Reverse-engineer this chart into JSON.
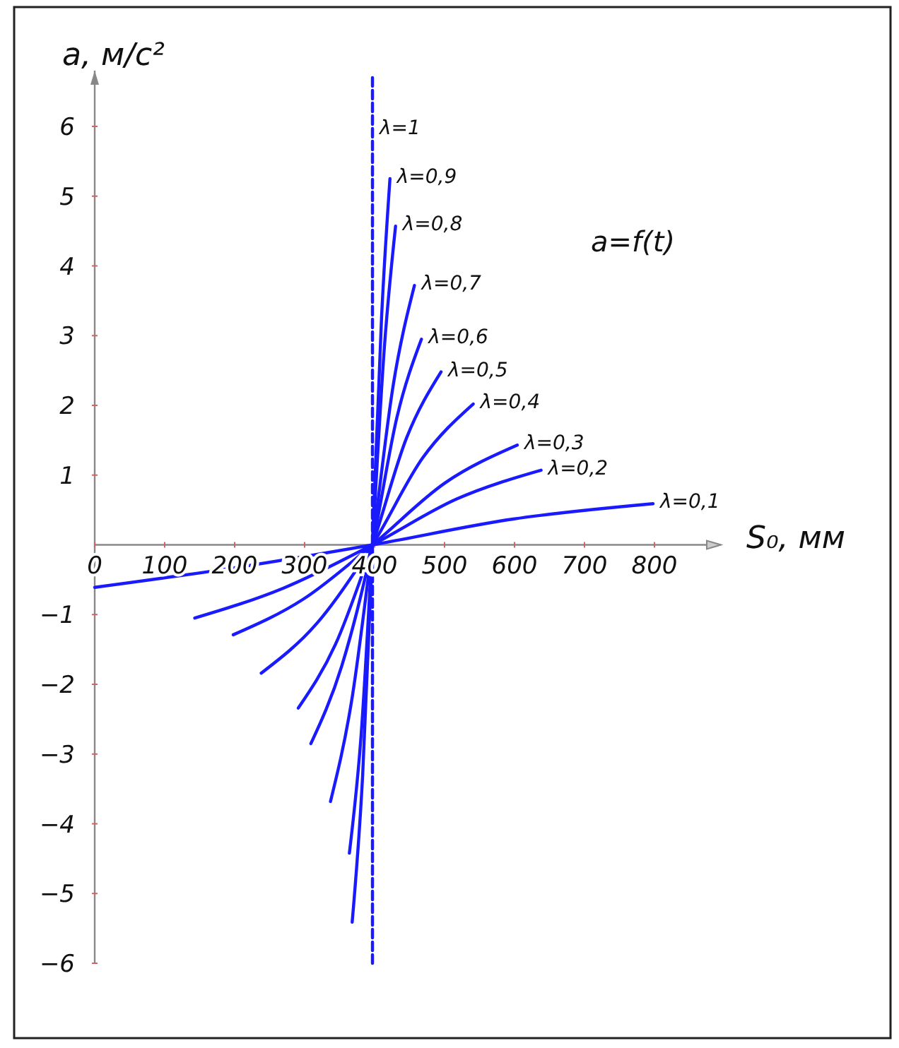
{
  "chart_data": {
    "type": "line",
    "xlabel": "S₀, мм",
    "ylabel": "a, м/с²",
    "annotations": [
      "a=f(t)"
    ],
    "xlim": [
      0,
      895
    ],
    "ylim": [
      -6,
      6.8
    ],
    "xticks": [
      0,
      100,
      200,
      300,
      400,
      500,
      600,
      700,
      800
    ],
    "yticks": [
      -6,
      -5,
      -4,
      -3,
      -2,
      -1,
      1,
      2,
      3,
      4,
      5,
      6
    ],
    "grid": false,
    "marker": "none",
    "line_style": "solid",
    "series": [
      {
        "name": "λ=1",
        "color": "#1a1aff",
        "line_style": "dashed",
        "x": [
          397,
          397
        ],
        "values": [
          -6,
          6.7
        ]
      },
      {
        "name": "λ=0,9",
        "color": "#1a1aff",
        "x": [
          368,
          383,
          397,
          410,
          422
        ],
        "values": [
          -5.41,
          -3.3,
          0,
          3.26,
          5.25
        ]
      },
      {
        "name": "λ=0,8",
        "color": "#1a1aff",
        "x": [
          364,
          381,
          397,
          414,
          430
        ],
        "values": [
          -4.42,
          -2.7,
          0,
          2.83,
          4.57
        ]
      },
      {
        "name": "λ=0,7",
        "color": "#1a1aff",
        "x": [
          337,
          367,
          397,
          427,
          457
        ],
        "values": [
          -3.68,
          -2.25,
          0,
          2.31,
          3.72
        ]
      },
      {
        "name": "λ=0,6",
        "color": "#1a1aff",
        "x": [
          309,
          353,
          397,
          432,
          467
        ],
        "values": [
          -2.85,
          -1.74,
          0,
          1.83,
          2.95
        ]
      },
      {
        "name": "λ=0,5",
        "color": "#1a1aff",
        "x": [
          291,
          344,
          397,
          446,
          495
        ],
        "values": [
          -2.34,
          -1.43,
          0,
          1.54,
          2.48
        ]
      },
      {
        "name": "λ=0,4",
        "color": "#1a1aff",
        "x": [
          238,
          318,
          397,
          469,
          541
        ],
        "values": [
          -1.84,
          -1.12,
          0,
          1.25,
          2.02
        ]
      },
      {
        "name": "λ=0,3",
        "color": "#1a1aff",
        "x": [
          198,
          298,
          397,
          501,
          604
        ],
        "values": [
          -1.29,
          -0.78,
          0,
          0.89,
          1.43
        ]
      },
      {
        "name": "λ=0,2",
        "color": "#1a1aff",
        "x": [
          143,
          270,
          397,
          518,
          638
        ],
        "values": [
          -1.05,
          -0.62,
          0,
          0.66,
          1.07
        ]
      },
      {
        "name": "λ=0,1",
        "color": "#1a1aff",
        "x": [
          0,
          199,
          397,
          598,
          798
        ],
        "values": [
          -0.61,
          -0.33,
          0,
          0.37,
          0.59
        ]
      }
    ]
  }
}
